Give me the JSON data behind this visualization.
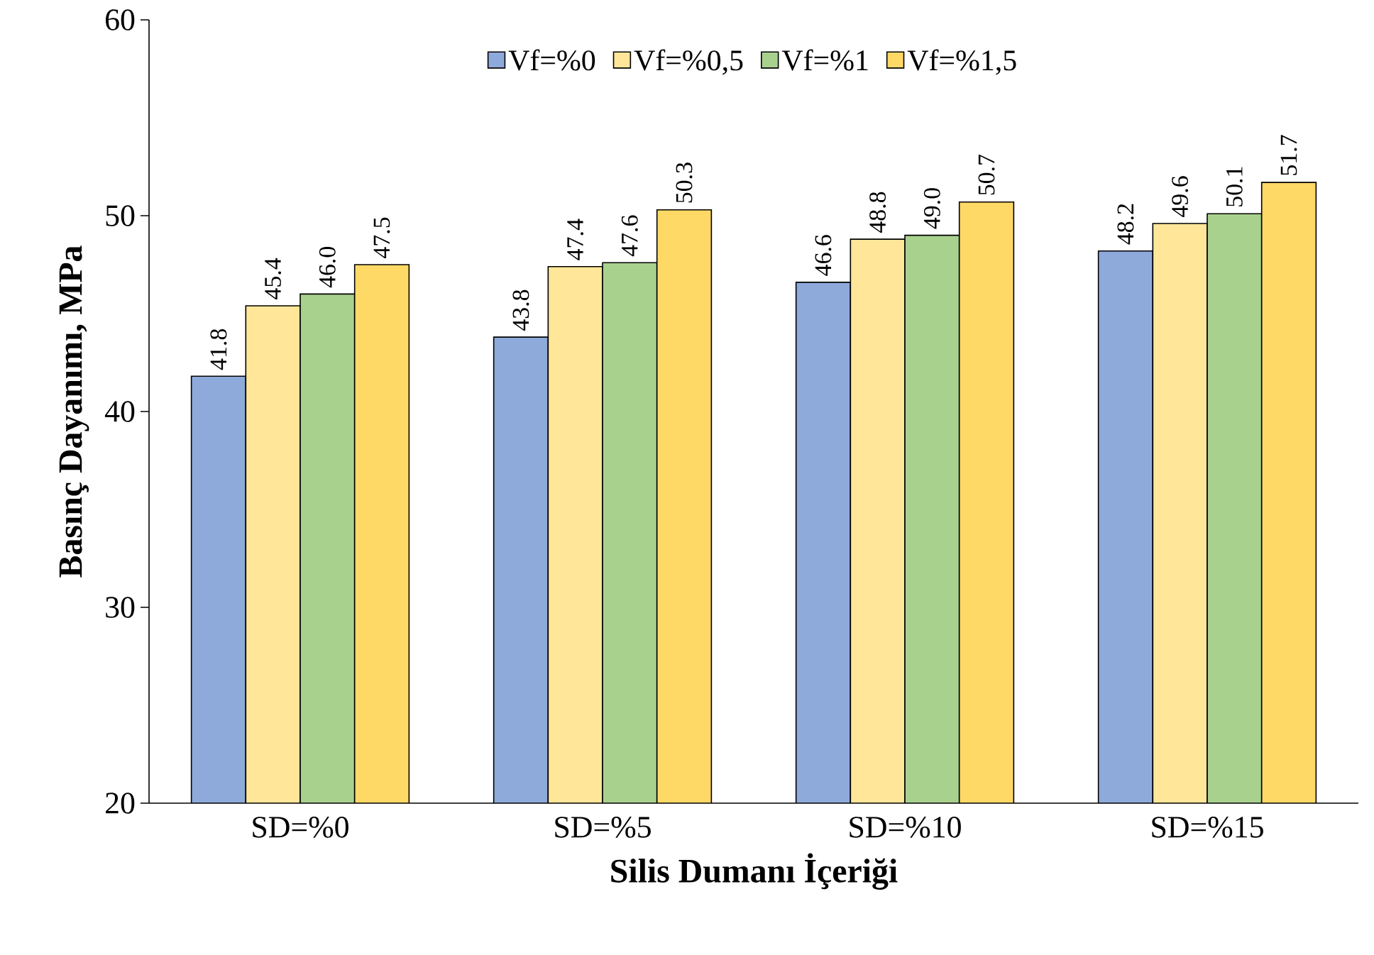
{
  "chart_data": {
    "type": "bar",
    "xlabel": "Silis Dumanı İçeriği",
    "ylabel": "Basınç Dayanımı, MPa",
    "categories": [
      "SD=%0",
      "SD=%5",
      "SD=%10",
      "SD=%15"
    ],
    "series": [
      {
        "name": "Vf=%0",
        "color": "#8eaadb",
        "values": [
          41.8,
          43.8,
          46.6,
          48.2
        ],
        "value_labels": [
          "41.8",
          "43.8",
          "46.6",
          "48.2"
        ]
      },
      {
        "name": "Vf=%0,5",
        "color": "#ffe699",
        "values": [
          45.4,
          47.4,
          48.8,
          49.6
        ],
        "value_labels": [
          "45.4",
          "47.4",
          "48.8",
          "49.6"
        ]
      },
      {
        "name": "Vf=%1",
        "color": "#a9d18e",
        "values": [
          46.0,
          47.6,
          49.0,
          50.1
        ],
        "value_labels": [
          "46.0",
          "47.6",
          "49.0",
          "50.1"
        ]
      },
      {
        "name": "Vf=%1,5",
        "color": "#ffd966",
        "values": [
          47.5,
          50.3,
          50.7,
          51.7
        ],
        "value_labels": [
          "47.5",
          "50.3",
          "50.7",
          "51.7"
        ]
      }
    ],
    "ylim": [
      20,
      60
    ],
    "yticks": [
      20,
      30,
      40,
      50,
      60
    ],
    "grid": false,
    "legend": "top"
  }
}
